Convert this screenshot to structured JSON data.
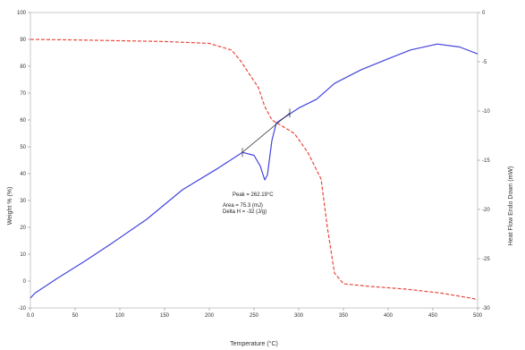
{
  "chart_data": {
    "type": "line",
    "xlabel": "Temperature (°C)",
    "ylabel_left": "Weight % (%)",
    "ylabel_right": "Heat Flow Endo Down (mW)",
    "xlim": [
      0,
      500
    ],
    "ylim_left": [
      -10,
      100
    ],
    "ylim_right": [
      -30,
      0
    ],
    "x_ticks": [
      "0.0",
      "50",
      "100",
      "150",
      "200",
      "250",
      "300",
      "350",
      "400",
      "450",
      "500"
    ],
    "y_ticks_left": [
      "-10",
      "0",
      "10",
      "20",
      "30",
      "40",
      "50",
      "60",
      "70",
      "80",
      "90",
      "100"
    ],
    "y_ticks_right": [
      "-30",
      "-25",
      "-20",
      "-15",
      "-10",
      "-5",
      "0"
    ],
    "grid": false,
    "series": [
      {
        "axis": "left",
        "color": "#e8483c",
        "dash": true,
        "points": [
          [
            0,
            90
          ],
          [
            50,
            89.8
          ],
          [
            100,
            89.5
          ],
          [
            150,
            89.2
          ],
          [
            200,
            88.5
          ],
          [
            225,
            86
          ],
          [
            235,
            82
          ],
          [
            245,
            77
          ],
          [
            255,
            72
          ],
          [
            262,
            65
          ],
          [
            270,
            60
          ],
          [
            280,
            58
          ],
          [
            295,
            55
          ],
          [
            310,
            48
          ],
          [
            325,
            38
          ],
          [
            332,
            20
          ],
          [
            340,
            3
          ],
          [
            350,
            -1
          ],
          [
            380,
            -2
          ],
          [
            420,
            -3
          ],
          [
            460,
            -4.5
          ],
          [
            495,
            -6.5
          ],
          [
            500,
            -7
          ]
        ]
      },
      {
        "axis": "right",
        "color": "#4444dd",
        "dash": false,
        "points": [
          [
            0,
            -29
          ],
          [
            5,
            -28.5
          ],
          [
            30,
            -27
          ],
          [
            60,
            -25.3
          ],
          [
            90,
            -23.5
          ],
          [
            130,
            -21
          ],
          [
            170,
            -18
          ],
          [
            210,
            -15.8
          ],
          [
            237,
            -14.2
          ],
          [
            250,
            -14.5
          ],
          [
            257,
            -15.6
          ],
          [
            262,
            -17
          ],
          [
            265,
            -16.5
          ],
          [
            270,
            -13
          ],
          [
            275,
            -11.2
          ],
          [
            300,
            -9.7
          ],
          [
            320,
            -8.8
          ],
          [
            340,
            -7.2
          ],
          [
            370,
            -5.8
          ],
          [
            400,
            -4.7
          ],
          [
            425,
            -3.8
          ],
          [
            455,
            -3.2
          ],
          [
            480,
            -3.5
          ],
          [
            500,
            -4.2
          ]
        ]
      },
      {
        "axis": "right",
        "color": "#3a3a3a",
        "dash": false,
        "points": [
          [
            237,
            -14.2
          ],
          [
            290,
            -10.2
          ]
        ]
      }
    ],
    "annotations": [
      "Peak = 262.19°C",
      "Area = 75.3 (mJ)",
      "Delta H = -32 (J/g)"
    ]
  }
}
